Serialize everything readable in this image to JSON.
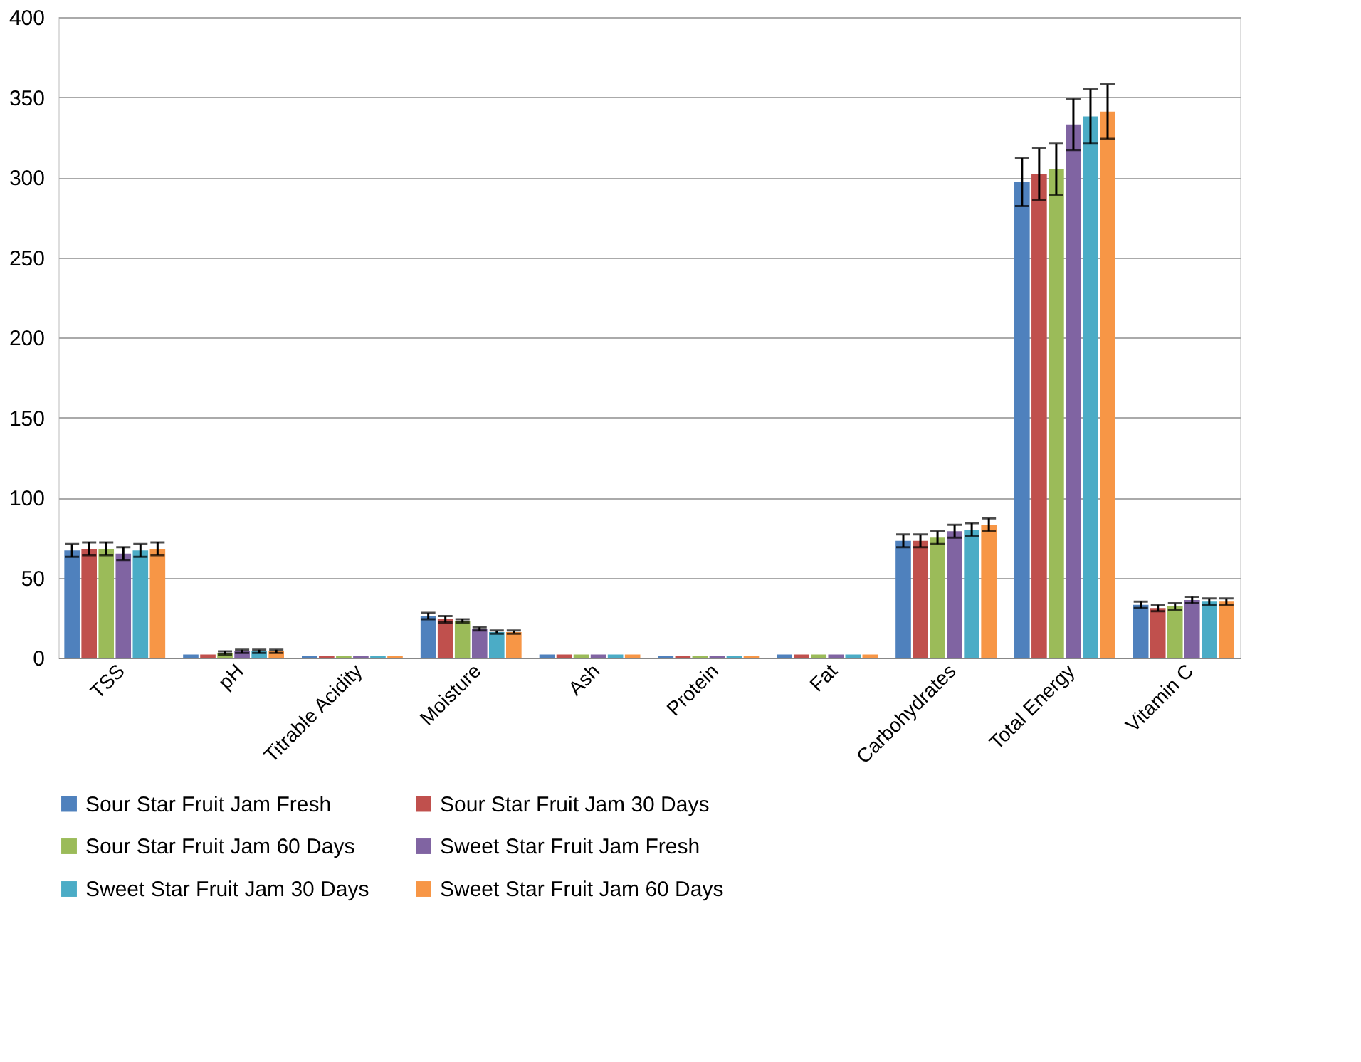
{
  "chart_data": {
    "type": "bar",
    "categories": [
      "TSS",
      "pH",
      "Titrable Acidity",
      "Moisture",
      "Ash",
      "Protein",
      "Fat",
      "Carbohydrates",
      "Total Energy",
      "Vitamin C"
    ],
    "series": [
      {
        "name": "Sour Star Fruit Jam Fresh",
        "color": "#4f81bd",
        "values": [
          67,
          2,
          1,
          26,
          2,
          1,
          2,
          73,
          297,
          33
        ],
        "errors": [
          4,
          null,
          null,
          2,
          null,
          null,
          null,
          4,
          15,
          2
        ]
      },
      {
        "name": "Sour Star Fruit Jam 30 Days",
        "color": "#c0504d",
        "values": [
          68,
          2,
          1,
          24,
          2,
          1,
          2,
          73,
          302,
          31
        ],
        "errors": [
          4,
          null,
          null,
          2,
          null,
          null,
          null,
          4,
          16,
          2
        ]
      },
      {
        "name": "Sour Star Fruit Jam 60 Days",
        "color": "#9bbb59",
        "values": [
          68,
          3,
          1,
          23,
          2,
          1,
          2,
          75,
          305,
          32
        ],
        "errors": [
          4,
          1,
          null,
          1,
          null,
          null,
          null,
          4,
          16,
          2
        ]
      },
      {
        "name": "Sweet Star Fruit Jam Fresh",
        "color": "#8064a2",
        "values": [
          65,
          4,
          1,
          18,
          2,
          1,
          2,
          79,
          333,
          36
        ],
        "errors": [
          4,
          1,
          null,
          1,
          null,
          null,
          null,
          4,
          16,
          2
        ]
      },
      {
        "name": "Sweet Star Fruit Jam 30 Days",
        "color": "#4bacc6",
        "values": [
          67,
          4,
          1,
          16,
          2,
          1,
          2,
          80,
          338,
          35
        ],
        "errors": [
          4,
          1,
          null,
          1,
          null,
          null,
          null,
          4,
          17,
          2
        ]
      },
      {
        "name": "Sweet Star Fruit Jam 60 Days",
        "color": "#f79646",
        "values": [
          68,
          4,
          1,
          16,
          2,
          1,
          2,
          83,
          341,
          35
        ],
        "errors": [
          4,
          1,
          null,
          1,
          null,
          null,
          null,
          4,
          17,
          2
        ]
      }
    ],
    "ylim": [
      0,
      400
    ],
    "yticks": [
      0,
      50,
      100,
      150,
      200,
      250,
      300,
      350,
      400
    ],
    "grid": "y",
    "legend": "bottom"
  }
}
